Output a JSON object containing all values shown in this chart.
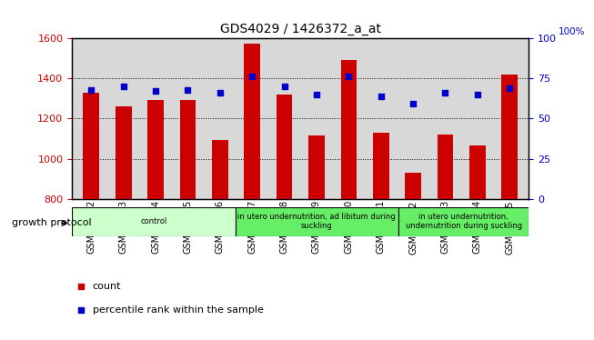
{
  "title": "GDS4029 / 1426372_a_at",
  "samples": [
    "GSM402542",
    "GSM402543",
    "GSM402544",
    "GSM402545",
    "GSM402546",
    "GSM402547",
    "GSM402548",
    "GSM402549",
    "GSM402550",
    "GSM402551",
    "GSM402552",
    "GSM402553",
    "GSM402554",
    "GSM402555"
  ],
  "counts": [
    1330,
    1260,
    1290,
    1290,
    1095,
    1570,
    1320,
    1115,
    1490,
    1130,
    930,
    1120,
    1065,
    1420
  ],
  "percentiles": [
    68,
    70,
    67,
    68,
    66,
    76,
    70,
    65,
    76,
    64,
    59,
    66,
    65,
    69
  ],
  "ylim_left": [
    800,
    1600
  ],
  "ylim_right": [
    0,
    100
  ],
  "yticks_left": [
    800,
    1000,
    1200,
    1400,
    1600
  ],
  "yticks_right": [
    0,
    25,
    50,
    75,
    100
  ],
  "groups": [
    {
      "label": "control",
      "start": 0,
      "end": 5,
      "color": "#ccffcc"
    },
    {
      "label": "in utero undernutrition, ad libitum during\nsuckling",
      "start": 5,
      "end": 10,
      "color": "#66ee66"
    },
    {
      "label": "in utero undernutrition,\nundernutrition during suckling",
      "start": 10,
      "end": 14,
      "color": "#66ee66"
    }
  ],
  "bar_color": "#cc0000",
  "dot_color": "#0000cc",
  "bar_width": 0.5,
  "grid_color": "#000000",
  "plot_bg_color": "#d8d8d8",
  "group_label": "growth protocol",
  "legend_count_color": "#cc0000",
  "legend_pct_color": "#0000cc"
}
